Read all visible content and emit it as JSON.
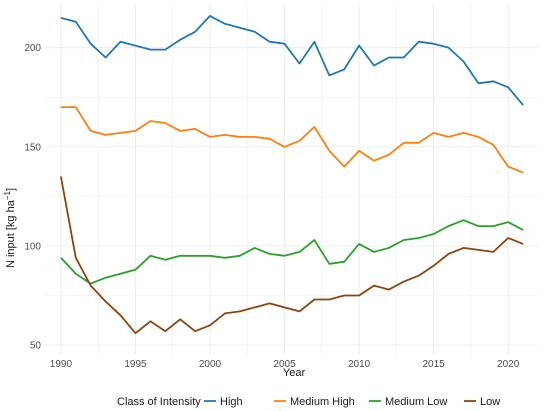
{
  "chart_data": {
    "type": "line",
    "xlabel": "Year",
    "ylabel": "N input [kg ha",
    "ylabel_sup": "−1",
    "ylabel_close": "]",
    "xlim": [
      1989,
      2022
    ],
    "ylim": [
      45,
      222
    ],
    "x_ticks": [
      1990,
      1995,
      2000,
      2005,
      2010,
      2015,
      2020
    ],
    "y_ticks": [
      50,
      100,
      150,
      200
    ],
    "grid": true,
    "legend": {
      "title": "Class of Intensity",
      "placement": "bottom"
    },
    "x": [
      1990,
      1991,
      1992,
      1993,
      1994,
      1995,
      1996,
      1997,
      1998,
      1999,
      2000,
      2001,
      2002,
      2003,
      2004,
      2005,
      2006,
      2007,
      2008,
      2009,
      2010,
      2011,
      2012,
      2013,
      2014,
      2015,
      2016,
      2017,
      2018,
      2019,
      2020,
      2021
    ],
    "series": [
      {
        "name": "High",
        "color": "#1f78b4",
        "values": [
          215,
          213,
          202,
          195,
          203,
          201,
          199,
          199,
          204,
          208,
          216,
          212,
          210,
          208,
          203,
          202,
          192,
          203,
          186,
          189,
          201,
          191,
          195,
          195,
          203,
          202,
          200,
          193,
          182,
          183,
          180,
          171
        ]
      },
      {
        "name": "Medium High",
        "color": "#ff7f0e",
        "values": [
          170,
          170,
          158,
          156,
          157,
          158,
          163,
          162,
          158,
          159,
          155,
          156,
          155,
          155,
          154,
          150,
          153,
          160,
          148,
          140,
          148,
          143,
          146,
          152,
          152,
          157,
          155,
          157,
          155,
          151,
          140,
          137
        ]
      },
      {
        "name": "Medium Low",
        "color": "#2ca02c",
        "values": [
          94,
          86,
          81,
          84,
          86,
          88,
          95,
          93,
          95,
          95,
          95,
          94,
          95,
          99,
          96,
          95,
          97,
          103,
          91,
          92,
          101,
          97,
          99,
          103,
          104,
          106,
          110,
          113,
          110,
          110,
          112,
          108
        ]
      },
      {
        "name": "Low",
        "color": "#8b4513",
        "values": [
          135,
          94,
          80,
          72,
          65,
          56,
          62,
          57,
          63,
          57,
          60,
          66,
          67,
          69,
          71,
          69,
          67,
          73,
          73,
          75,
          75,
          80,
          78,
          82,
          85,
          90,
          96,
          99,
          98,
          97,
          104,
          101
        ]
      }
    ]
  }
}
